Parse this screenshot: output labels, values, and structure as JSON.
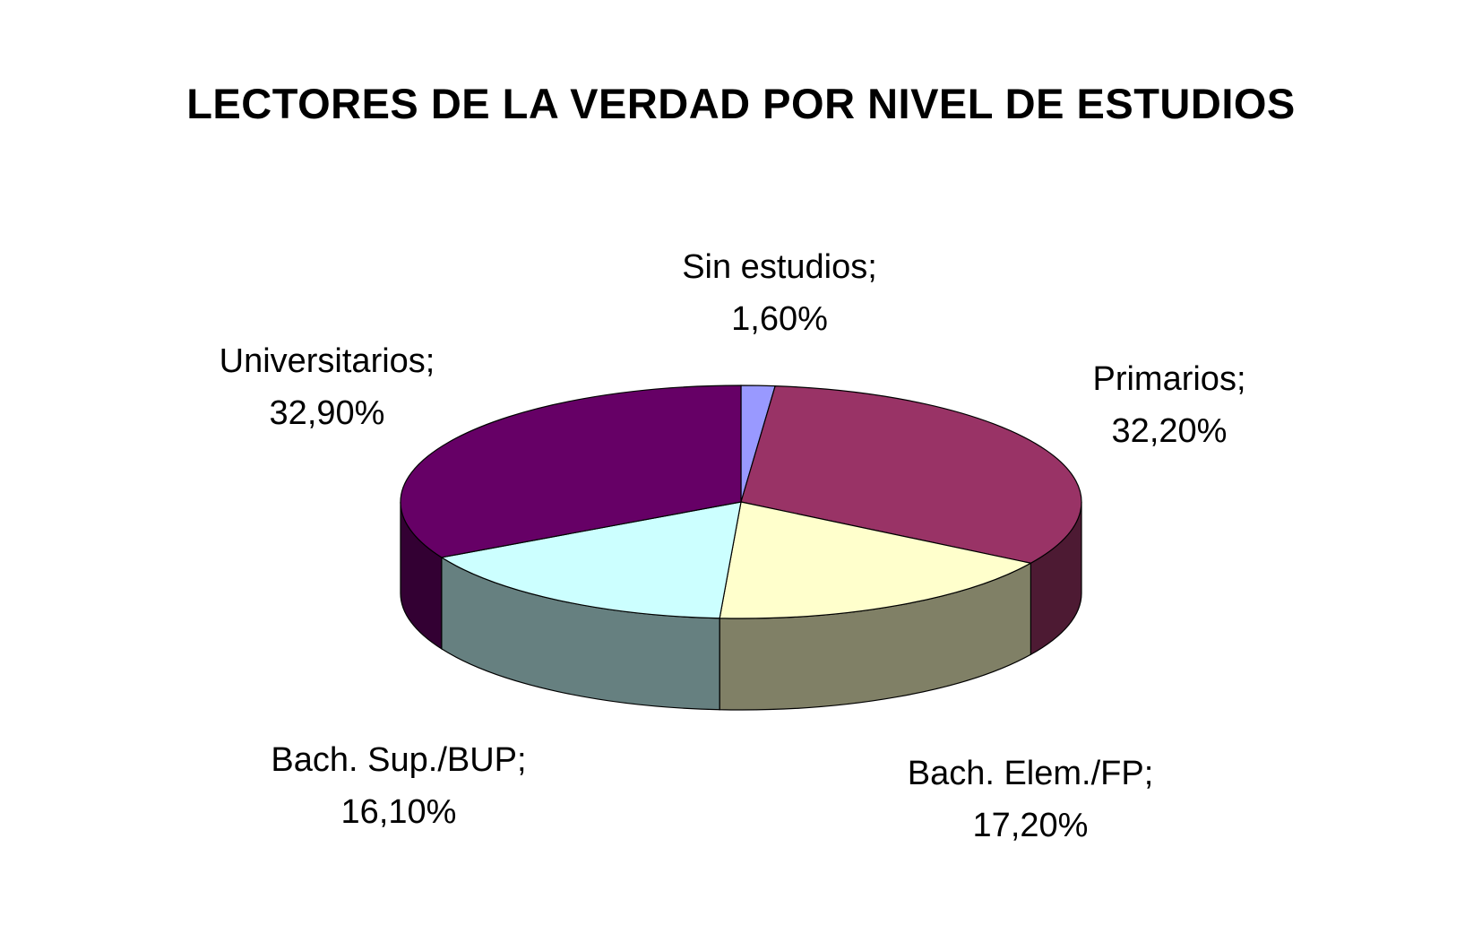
{
  "chart_data": {
    "type": "pie",
    "title": "LECTORES DE LA VERDAD POR NIVEL DE ESTUDIOS",
    "style": "3d",
    "slices": [
      {
        "label": "Sin estudios;",
        "value_label": "1,60%",
        "value": 1.6,
        "color": "#9999ff",
        "side_color": "#4d4d80"
      },
      {
        "label": "Primarios;",
        "value_label": "32,20%",
        "value": 32.2,
        "color": "#993366",
        "side_color": "#4d1a33"
      },
      {
        "label": "Bach. Elem./FP;",
        "value_label": "17,20%",
        "value": 17.2,
        "color": "#ffffcc",
        "side_color": "#808066"
      },
      {
        "label": "Bach. Sup./BUP;",
        "value_label": "16,10%",
        "value": 16.1,
        "color": "#ccffff",
        "side_color": "#668080"
      },
      {
        "label": "Universitarios;",
        "value_label": "32,90%",
        "value": 32.9,
        "color": "#660066",
        "side_color": "#330033"
      }
    ]
  }
}
